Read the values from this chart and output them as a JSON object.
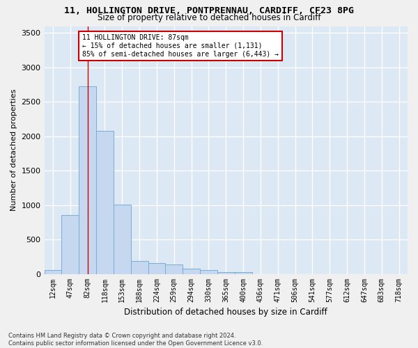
{
  "title_line1": "11, HOLLINGTON DRIVE, PONTPRENNAU, CARDIFF, CF23 8PG",
  "title_line2": "Size of property relative to detached houses in Cardiff",
  "xlabel": "Distribution of detached houses by size in Cardiff",
  "ylabel": "Number of detached properties",
  "footnote": "Contains HM Land Registry data © Crown copyright and database right 2024.\nContains public sector information licensed under the Open Government Licence v3.0.",
  "bar_labels": [
    "12sqm",
    "47sqm",
    "82sqm",
    "118sqm",
    "153sqm",
    "188sqm",
    "224sqm",
    "259sqm",
    "294sqm",
    "330sqm",
    "365sqm",
    "400sqm",
    "436sqm",
    "471sqm",
    "506sqm",
    "541sqm",
    "577sqm",
    "612sqm",
    "647sqm",
    "683sqm",
    "718sqm"
  ],
  "bar_values": [
    55,
    850,
    2730,
    2080,
    1010,
    190,
    155,
    135,
    75,
    60,
    30,
    30,
    0,
    0,
    0,
    0,
    0,
    0,
    0,
    0,
    0
  ],
  "bar_color": "#c5d8f0",
  "bar_edge_color": "#7aadd4",
  "highlight_bar_index": 2,
  "highlight_line_color": "#cc0000",
  "annotation_text": "11 HOLLINGTON DRIVE: 87sqm\n← 15% of detached houses are smaller (1,131)\n85% of semi-detached houses are larger (6,443) →",
  "annotation_box_color": "#ffffff",
  "annotation_box_edge_color": "#cc0000",
  "ylim": [
    0,
    3600
  ],
  "yticks": [
    0,
    500,
    1000,
    1500,
    2000,
    2500,
    3000,
    3500
  ],
  "background_color": "#dde8f5",
  "grid_color": "#ffffff",
  "fig_bg_color": "#f0f0f0"
}
